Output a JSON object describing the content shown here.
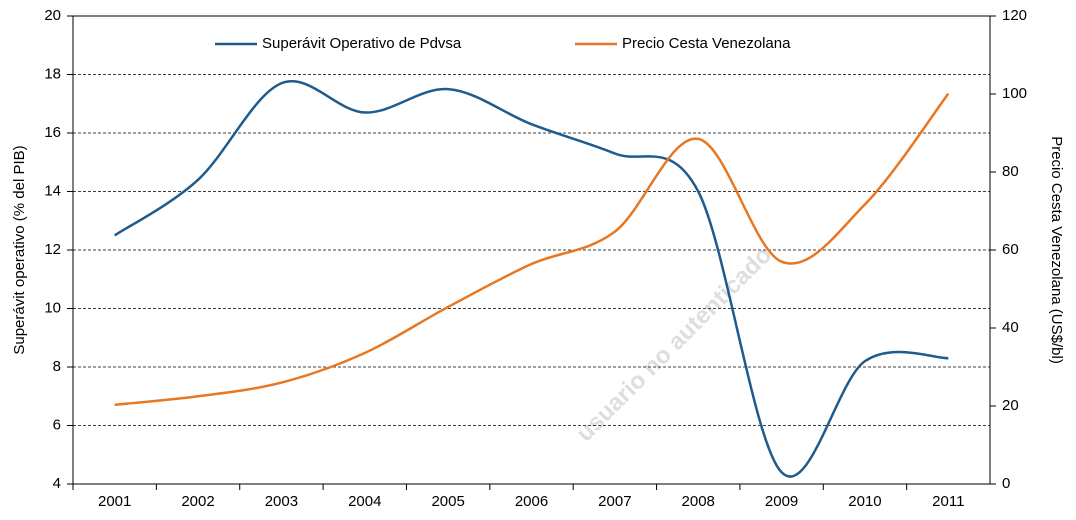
{
  "chart_data": {
    "type": "line",
    "categories": [
      "2001",
      "2002",
      "2003",
      "2004",
      "2005",
      "2006",
      "2007",
      "2008",
      "2009",
      "2010",
      "2011"
    ],
    "series": [
      {
        "name": "Superávit Operativo de Pdvsa",
        "color": "#1f5b8c",
        "values": [
          12.5,
          14.4,
          17.7,
          16.7,
          17.5,
          16.3,
          15.3,
          14.0,
          4.4,
          8.2,
          8.3
        ]
      },
      {
        "name": "Precio Cesta Venezolana",
        "color": "#e87722",
        "axis": "y2",
        "values": [
          20.3,
          22.5,
          26,
          33.6,
          45.4,
          56.4,
          64.7,
          88.5,
          57,
          71.7,
          100.1
        ]
      }
    ],
    "ylabel": "Superávit operativo (% del PIB)",
    "y2label": "Precio Cesta Venezolana  (US$/bl)",
    "ylim": [
      4,
      20
    ],
    "yticks": [
      4,
      6,
      8,
      10,
      12,
      14,
      16,
      18,
      20
    ],
    "y2lim": [
      0,
      120
    ],
    "y2ticks": [
      0,
      20,
      40,
      60,
      80,
      100,
      120
    ],
    "grid": true,
    "legend": "top",
    "watermark": "usuario no autenticado"
  }
}
